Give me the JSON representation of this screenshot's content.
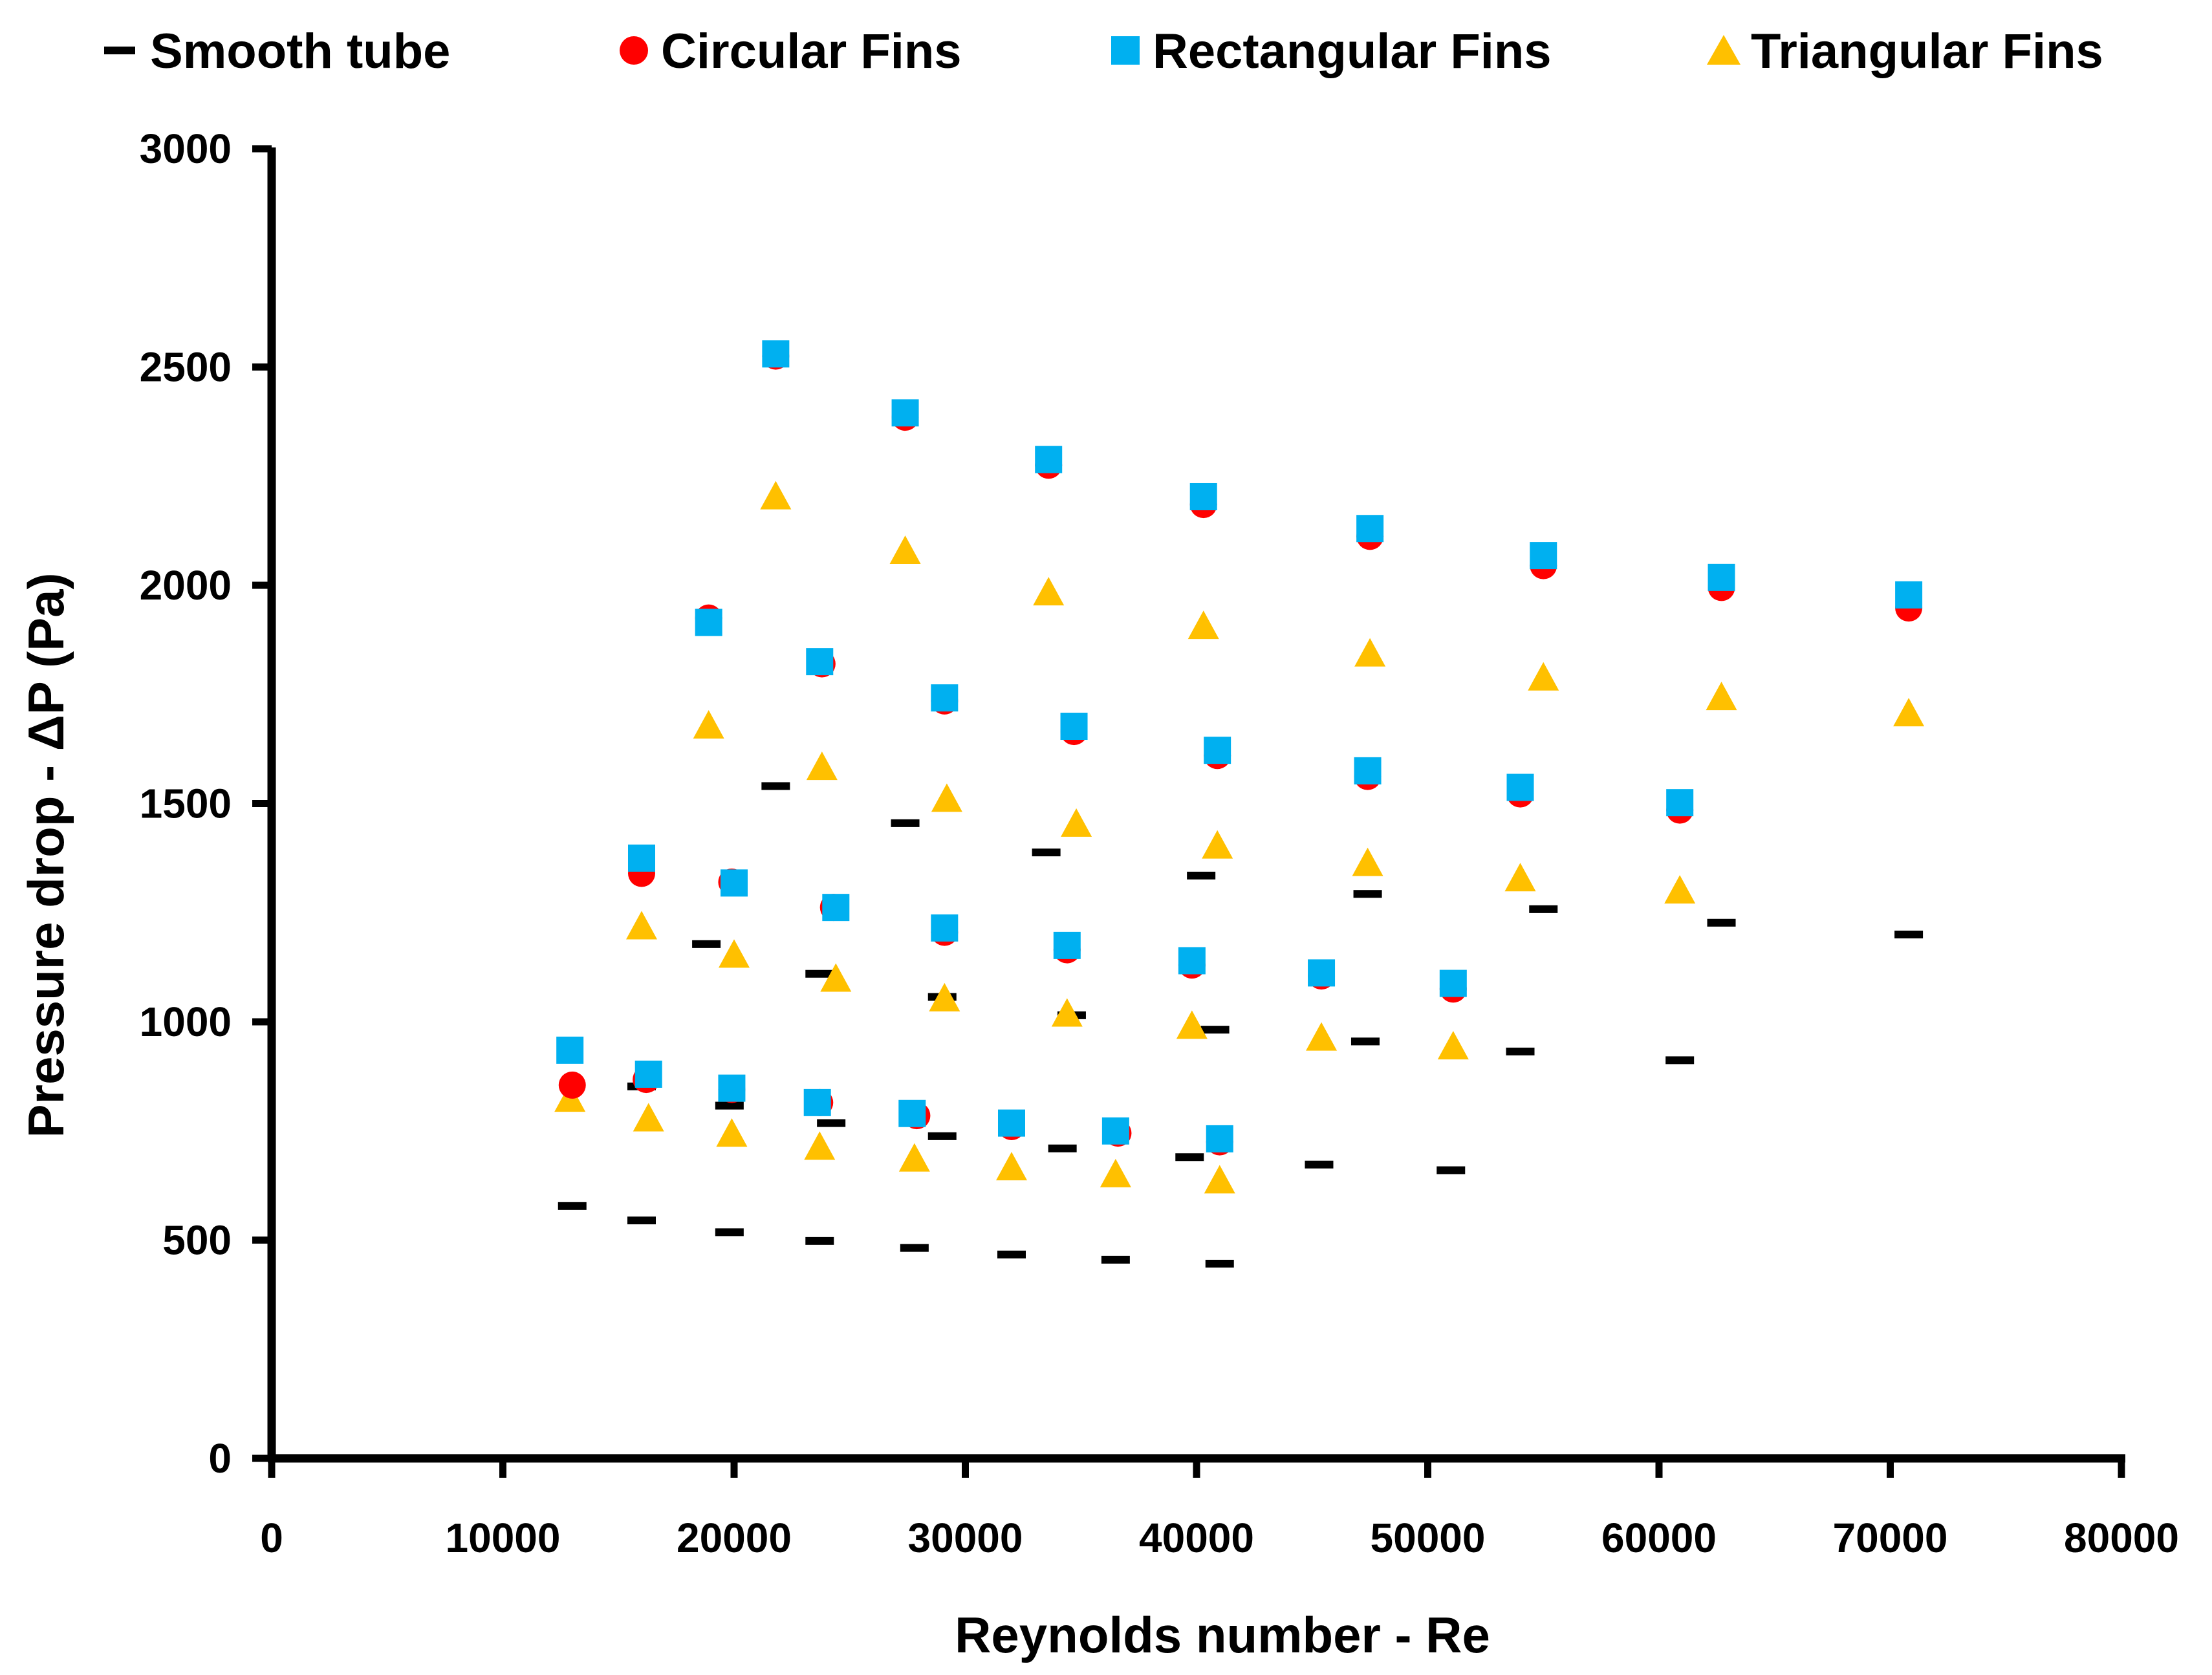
{
  "chart_data": {
    "type": "scatter",
    "title": "",
    "xlabel": "Reynolds number - Re",
    "ylabel": "Pressure drop - ΔP (Pa)",
    "xlim": [
      0,
      80000
    ],
    "ylim": [
      0,
      3000
    ],
    "xticks": [
      0,
      10000,
      20000,
      30000,
      40000,
      50000,
      60000,
      70000,
      80000
    ],
    "yticks": [
      0,
      500,
      1000,
      1500,
      2000,
      2500,
      3000
    ],
    "xtick_labels": [
      "0",
      "10000",
      "20000",
      "30000",
      "40000",
      "50000",
      "60000",
      "70000",
      "80000"
    ],
    "ytick_labels": [
      "0",
      "500",
      "1000",
      "1500",
      "2000",
      "2500",
      "3000"
    ],
    "legend_position": "top",
    "grid": false,
    "series": [
      {
        "name": "Smooth tube",
        "marker": "dash",
        "color": "#000000",
        "points": [
          [
            13000,
            578
          ],
          [
            16000,
            545
          ],
          [
            19800,
            518
          ],
          [
            23700,
            498
          ],
          [
            27800,
            482
          ],
          [
            32000,
            467
          ],
          [
            36500,
            455
          ],
          [
            41000,
            446
          ],
          [
            16000,
            852
          ],
          [
            19800,
            808
          ],
          [
            24200,
            768
          ],
          [
            29000,
            738
          ],
          [
            34200,
            710
          ],
          [
            39700,
            690
          ],
          [
            45300,
            673
          ],
          [
            51000,
            660
          ],
          [
            18800,
            1178
          ],
          [
            23700,
            1110
          ],
          [
            29000,
            1057
          ],
          [
            34600,
            1015
          ],
          [
            40800,
            982
          ],
          [
            47300,
            955
          ],
          [
            54000,
            932
          ],
          [
            60900,
            912
          ],
          [
            21800,
            1540
          ],
          [
            27400,
            1455
          ],
          [
            33500,
            1388
          ],
          [
            40200,
            1335
          ],
          [
            47400,
            1293
          ],
          [
            55000,
            1258
          ],
          [
            62700,
            1227
          ],
          [
            70800,
            1200
          ]
        ]
      },
      {
        "name": "Circular Fins",
        "marker": "circle",
        "color": "#ff0000",
        "points": [
          [
            13000,
            855
          ],
          [
            16200,
            868
          ],
          [
            19900,
            845
          ],
          [
            23700,
            815
          ],
          [
            27900,
            785
          ],
          [
            32000,
            760
          ],
          [
            36600,
            745
          ],
          [
            41000,
            725
          ],
          [
            16000,
            1340
          ],
          [
            19900,
            1320
          ],
          [
            24300,
            1262
          ],
          [
            29100,
            1205
          ],
          [
            34400,
            1165
          ],
          [
            39800,
            1130
          ],
          [
            45400,
            1105
          ],
          [
            51100,
            1075
          ],
          [
            18900,
            1925
          ],
          [
            23800,
            1820
          ],
          [
            29100,
            1735
          ],
          [
            34700,
            1665
          ],
          [
            40900,
            1610
          ],
          [
            47400,
            1562
          ],
          [
            54000,
            1522
          ],
          [
            60900,
            1485
          ],
          [
            21800,
            2525
          ],
          [
            27400,
            2385
          ],
          [
            33600,
            2275
          ],
          [
            40300,
            2185
          ],
          [
            47500,
            2112
          ],
          [
            55000,
            2045
          ],
          [
            62700,
            1995
          ],
          [
            70800,
            1948
          ]
        ]
      },
      {
        "name": "Rectangular Fins",
        "marker": "square",
        "color": "#00b0f0",
        "points": [
          [
            12900,
            935
          ],
          [
            16300,
            880
          ],
          [
            19900,
            848
          ],
          [
            23600,
            815
          ],
          [
            27700,
            790
          ],
          [
            32000,
            768
          ],
          [
            36500,
            750
          ],
          [
            41000,
            732
          ],
          [
            16000,
            1375
          ],
          [
            20000,
            1318
          ],
          [
            24400,
            1262
          ],
          [
            29100,
            1215
          ],
          [
            34400,
            1175
          ],
          [
            39800,
            1140
          ],
          [
            45400,
            1112
          ],
          [
            51100,
            1088
          ],
          [
            18900,
            1915
          ],
          [
            23700,
            1825
          ],
          [
            29100,
            1742
          ],
          [
            34700,
            1677
          ],
          [
            40900,
            1622
          ],
          [
            47400,
            1575
          ],
          [
            54000,
            1537
          ],
          [
            60900,
            1502
          ],
          [
            21800,
            2530
          ],
          [
            27400,
            2395
          ],
          [
            33600,
            2288
          ],
          [
            40300,
            2203
          ],
          [
            47500,
            2130
          ],
          [
            55000,
            2068
          ],
          [
            62700,
            2018
          ],
          [
            70800,
            1978
          ]
        ]
      },
      {
        "name": "Triangular Fins",
        "marker": "triangle",
        "color": "#ffc000",
        "points": [
          [
            12900,
            825
          ],
          [
            16300,
            780
          ],
          [
            19900,
            745
          ],
          [
            23700,
            715
          ],
          [
            27800,
            688
          ],
          [
            32000,
            668
          ],
          [
            36500,
            652
          ],
          [
            41000,
            638
          ],
          [
            16000,
            1220
          ],
          [
            20000,
            1155
          ],
          [
            24400,
            1100
          ],
          [
            29100,
            1055
          ],
          [
            34400,
            1020
          ],
          [
            39800,
            992
          ],
          [
            45400,
            965
          ],
          [
            51100,
            945
          ],
          [
            18900,
            1680
          ],
          [
            23800,
            1585
          ],
          [
            29200,
            1512
          ],
          [
            34800,
            1455
          ],
          [
            40900,
            1405
          ],
          [
            47400,
            1365
          ],
          [
            54000,
            1330
          ],
          [
            60900,
            1302
          ],
          [
            21800,
            2205
          ],
          [
            27400,
            2080
          ],
          [
            33600,
            1985
          ],
          [
            40300,
            1908
          ],
          [
            47500,
            1845
          ],
          [
            55000,
            1790
          ],
          [
            62700,
            1745
          ],
          [
            70800,
            1708
          ]
        ]
      }
    ]
  }
}
